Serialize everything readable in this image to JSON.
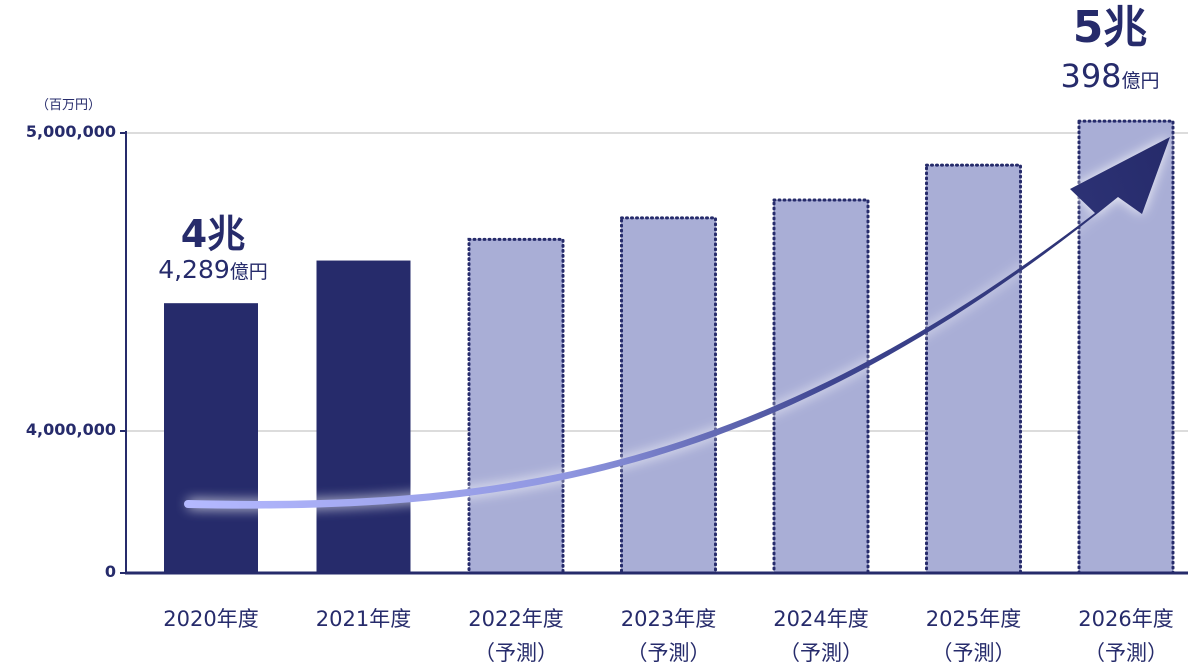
{
  "chart_data": {
    "type": "bar",
    "unit": "（百万円）",
    "categories": [
      "2020年度",
      "2021年度",
      "2022年度",
      "2023年度",
      "2024年度",
      "2025年度",
      "2026年度"
    ],
    "category_notes": [
      "",
      "",
      "（予測）",
      "（予測）",
      "（予測）",
      "（予測）",
      "（予測）"
    ],
    "values": [
      4428900,
      4572000,
      4643000,
      4715000,
      4775000,
      4892000,
      5039800
    ],
    "forecast": [
      false,
      false,
      true,
      true,
      true,
      true,
      true
    ],
    "y_ticks": [
      {
        "value": 0,
        "label": "0"
      },
      {
        "value": 4000000,
        "label": "4,000,000"
      },
      {
        "value": 5000000,
        "label": "5,000,000"
      }
    ],
    "y_axis_break": true,
    "grid": true,
    "callouts": [
      {
        "index": 0,
        "big": "4兆",
        "number": "4,289",
        "unit": "億円"
      },
      {
        "index": 6,
        "big": "5兆",
        "number": "398",
        "unit": "億円"
      }
    ],
    "trend_arrow": true,
    "colors": {
      "actual": "#262b6b",
      "forecast": "#a9aed6",
      "forecast_border": "#262b6b",
      "grid": "#dcdcdc",
      "text": "#262b6b",
      "arrow_start": "#b4b9ff",
      "arrow_end": "#262b6b"
    }
  }
}
